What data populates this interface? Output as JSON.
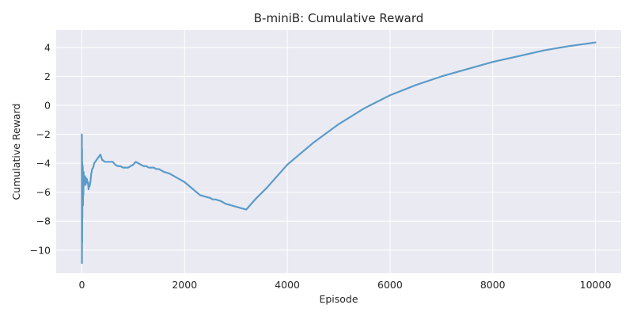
{
  "chart_data": {
    "type": "line",
    "title": "B-miniB: Cumulative Reward",
    "xlabel": "Episode",
    "ylabel": "Cumulative Reward",
    "xlim": [
      -500,
      10500
    ],
    "ylim": [
      -11.6,
      5.2
    ],
    "xticks": [
      0,
      2000,
      4000,
      6000,
      8000,
      10000
    ],
    "yticks": [
      -10,
      -8,
      -6,
      -4,
      -2,
      0,
      2,
      4
    ],
    "grid": true,
    "background": "#eaeaf2",
    "grid_color": "#ffffff",
    "line_color": "#5b9bc8",
    "series": [
      {
        "x": [
          0,
          2,
          4,
          6,
          8,
          10,
          12,
          15,
          18,
          22,
          26,
          30,
          35,
          40,
          50,
          60,
          70,
          80,
          90,
          100,
          110,
          120,
          130,
          140,
          150,
          160,
          170,
          180,
          190,
          200,
          220,
          240,
          260,
          280,
          300,
          320,
          340,
          360,
          380,
          400,
          420,
          440,
          460,
          480,
          500,
          550,
          600,
          650,
          700,
          750,
          800,
          850,
          900,
          950,
          1000,
          1050,
          1100,
          1150,
          1200,
          1250,
          1300,
          1350,
          1400,
          1450,
          1500,
          1600,
          1700,
          1800,
          1900,
          2000,
          2100,
          2200,
          2300,
          2400,
          2500,
          2550,
          2600,
          2700,
          2800,
          2900,
          3000,
          3100,
          3200,
          3300,
          3400,
          3600,
          3800,
          4000,
          4500,
          5000,
          5500,
          6000,
          6500,
          7000,
          7500,
          8000,
          8500,
          9000,
          9500,
          10000
        ],
        "y": [
          -2.0,
          -10.9,
          -3.0,
          -9.5,
          -4.0,
          -7.8,
          -5.0,
          -6.5,
          -4.2,
          -6.9,
          -5.0,
          -6.2,
          -4.6,
          -5.5,
          -5.0,
          -4.9,
          -5.5,
          -5.0,
          -5.3,
          -5.1,
          -5.4,
          -5.3,
          -5.8,
          -5.5,
          -5.6,
          -5.4,
          -5.2,
          -4.8,
          -4.6,
          -4.4,
          -4.3,
          -4.0,
          -3.9,
          -3.8,
          -3.7,
          -3.6,
          -3.5,
          -3.4,
          -3.6,
          -3.8,
          -3.8,
          -3.9,
          -3.9,
          -3.9,
          -3.9,
          -3.9,
          -3.9,
          -4.1,
          -4.2,
          -4.2,
          -4.3,
          -4.3,
          -4.3,
          -4.2,
          -4.1,
          -3.9,
          -4.0,
          -4.1,
          -4.2,
          -4.2,
          -4.3,
          -4.3,
          -4.3,
          -4.4,
          -4.4,
          -4.6,
          -4.7,
          -4.9,
          -5.1,
          -5.3,
          -5.6,
          -5.9,
          -6.2,
          -6.3,
          -6.4,
          -6.5,
          -6.5,
          -6.6,
          -6.8,
          -6.9,
          -7.0,
          -7.1,
          -7.2,
          -6.8,
          -6.4,
          -5.7,
          -4.9,
          -4.1,
          -2.6,
          -1.3,
          -0.2,
          0.7,
          1.4,
          2.0,
          2.5,
          3.0,
          3.4,
          3.8,
          4.1,
          4.35
        ]
      }
    ]
  }
}
